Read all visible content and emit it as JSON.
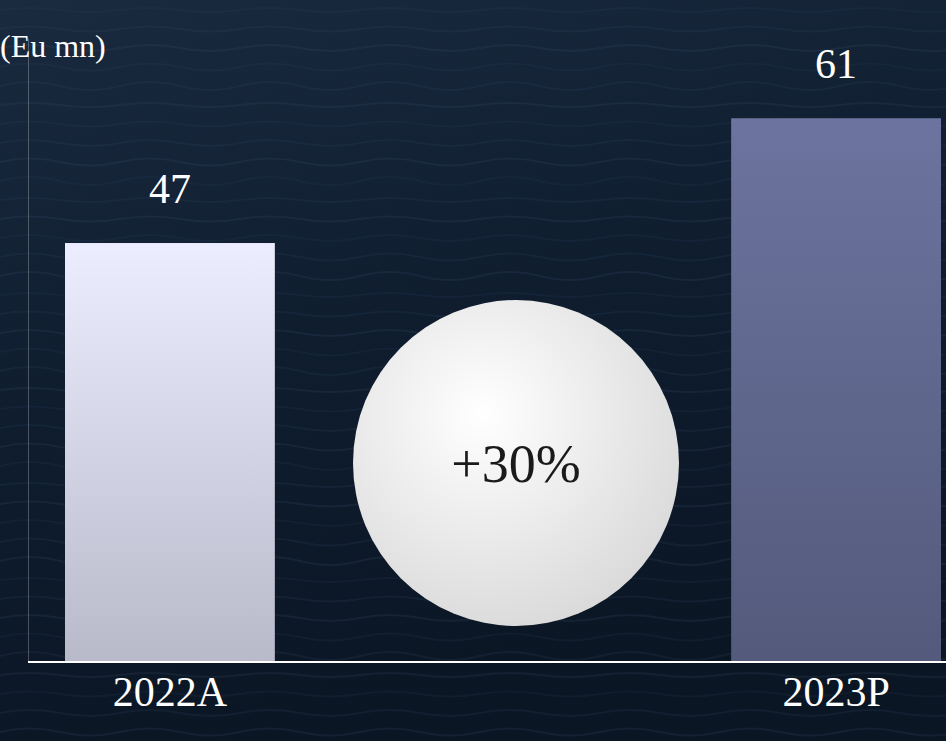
{
  "chart_data": {
    "type": "bar",
    "y_label": "(Eu mn)",
    "annotation": "+30%",
    "categories": [
      "2022A",
      "2023P"
    ],
    "values": [
      47,
      61
    ],
    "colors": [
      "#d0d2e4",
      "#5f668c"
    ],
    "ylim": [
      0,
      70
    ],
    "yticks": [],
    "grid": false,
    "data_labels": true,
    "tick_labels": "x"
  }
}
